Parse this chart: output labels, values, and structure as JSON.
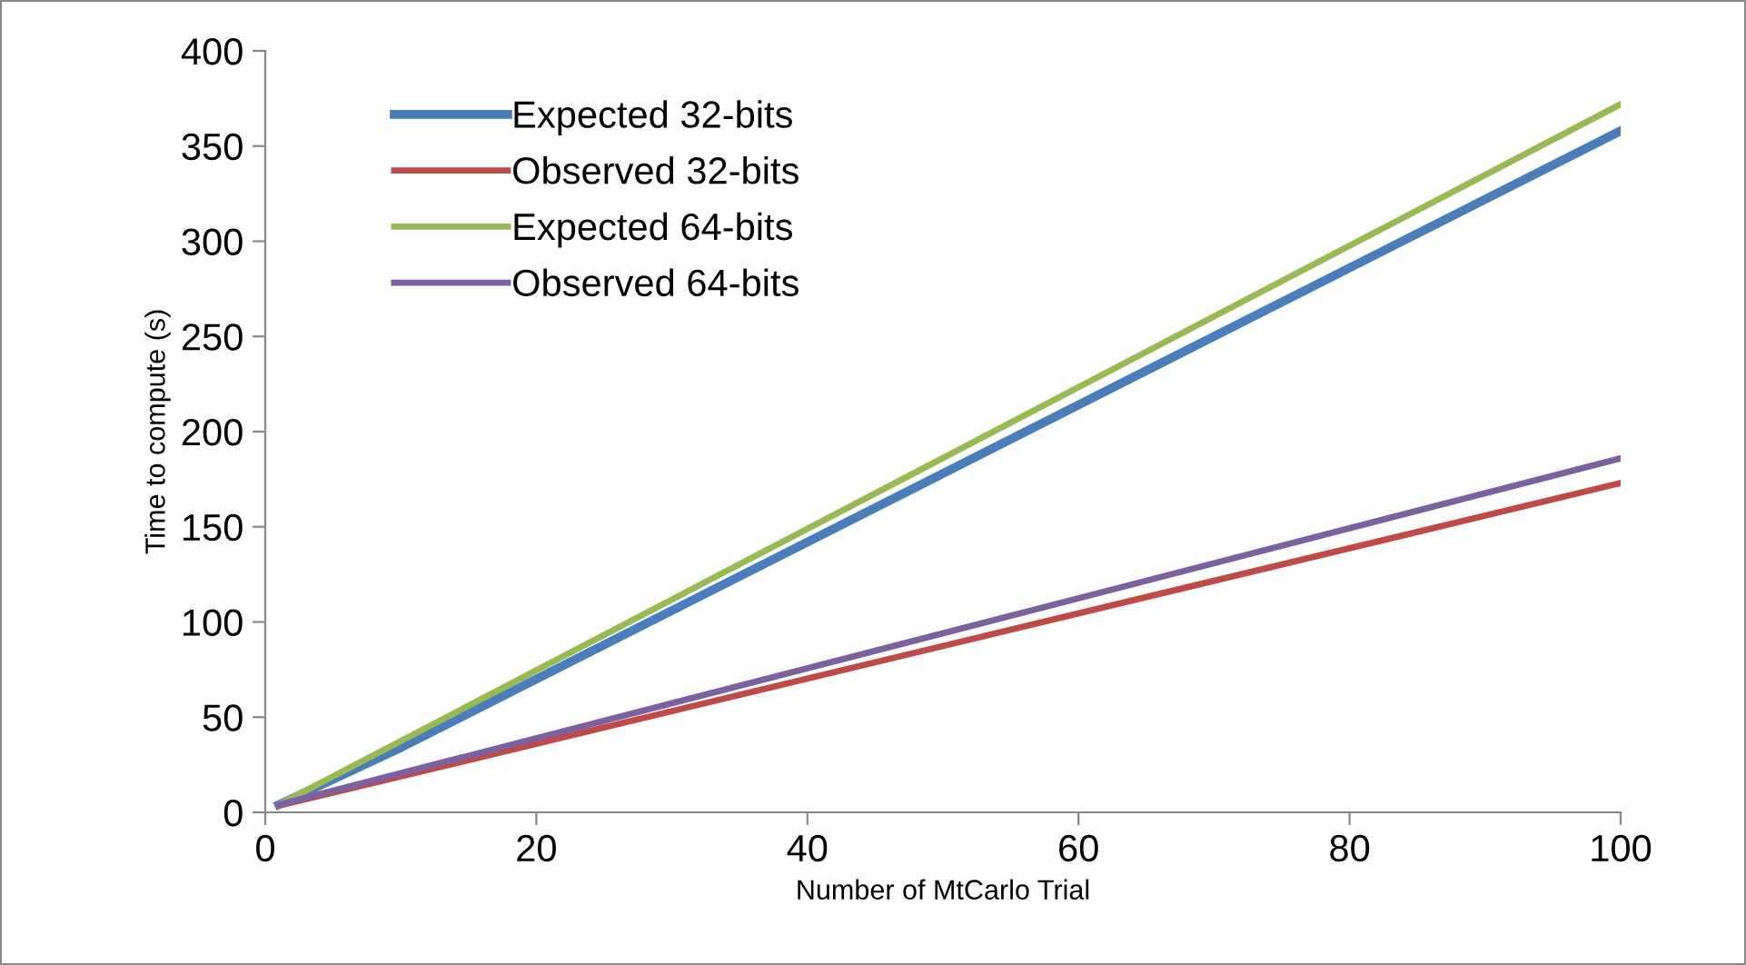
{
  "chart_data": {
    "type": "line",
    "xlabel": "Number of MtCarlo Trial",
    "ylabel": "Time to compute (s)",
    "xlim": [
      0,
      100
    ],
    "ylim": [
      0,
      400
    ],
    "xticks": [
      0,
      20,
      40,
      60,
      80,
      100
    ],
    "yticks": [
      0,
      50,
      100,
      150,
      200,
      250,
      300,
      350,
      400
    ],
    "grid": false,
    "legend": "top left",
    "marker": "none",
    "line_style": "solid",
    "series": [
      {
        "name": "Expected 32-bits",
        "color": "#4a7ebb",
        "x": [
          1,
          10,
          100
        ],
        "values": [
          4,
          34,
          358
        ]
      },
      {
        "name": "Observed 32-bits",
        "color": "#be4b48",
        "x": [
          1,
          100
        ],
        "values": [
          3.5,
          173
        ]
      },
      {
        "name": "Expected 64-bits",
        "color": "#98b954",
        "x": [
          1,
          100
        ],
        "values": [
          4,
          372
        ]
      },
      {
        "name": "Observed 64-bits",
        "color": "#7d60a0",
        "x": [
          1,
          100
        ],
        "values": [
          4,
          186
        ]
      }
    ]
  }
}
